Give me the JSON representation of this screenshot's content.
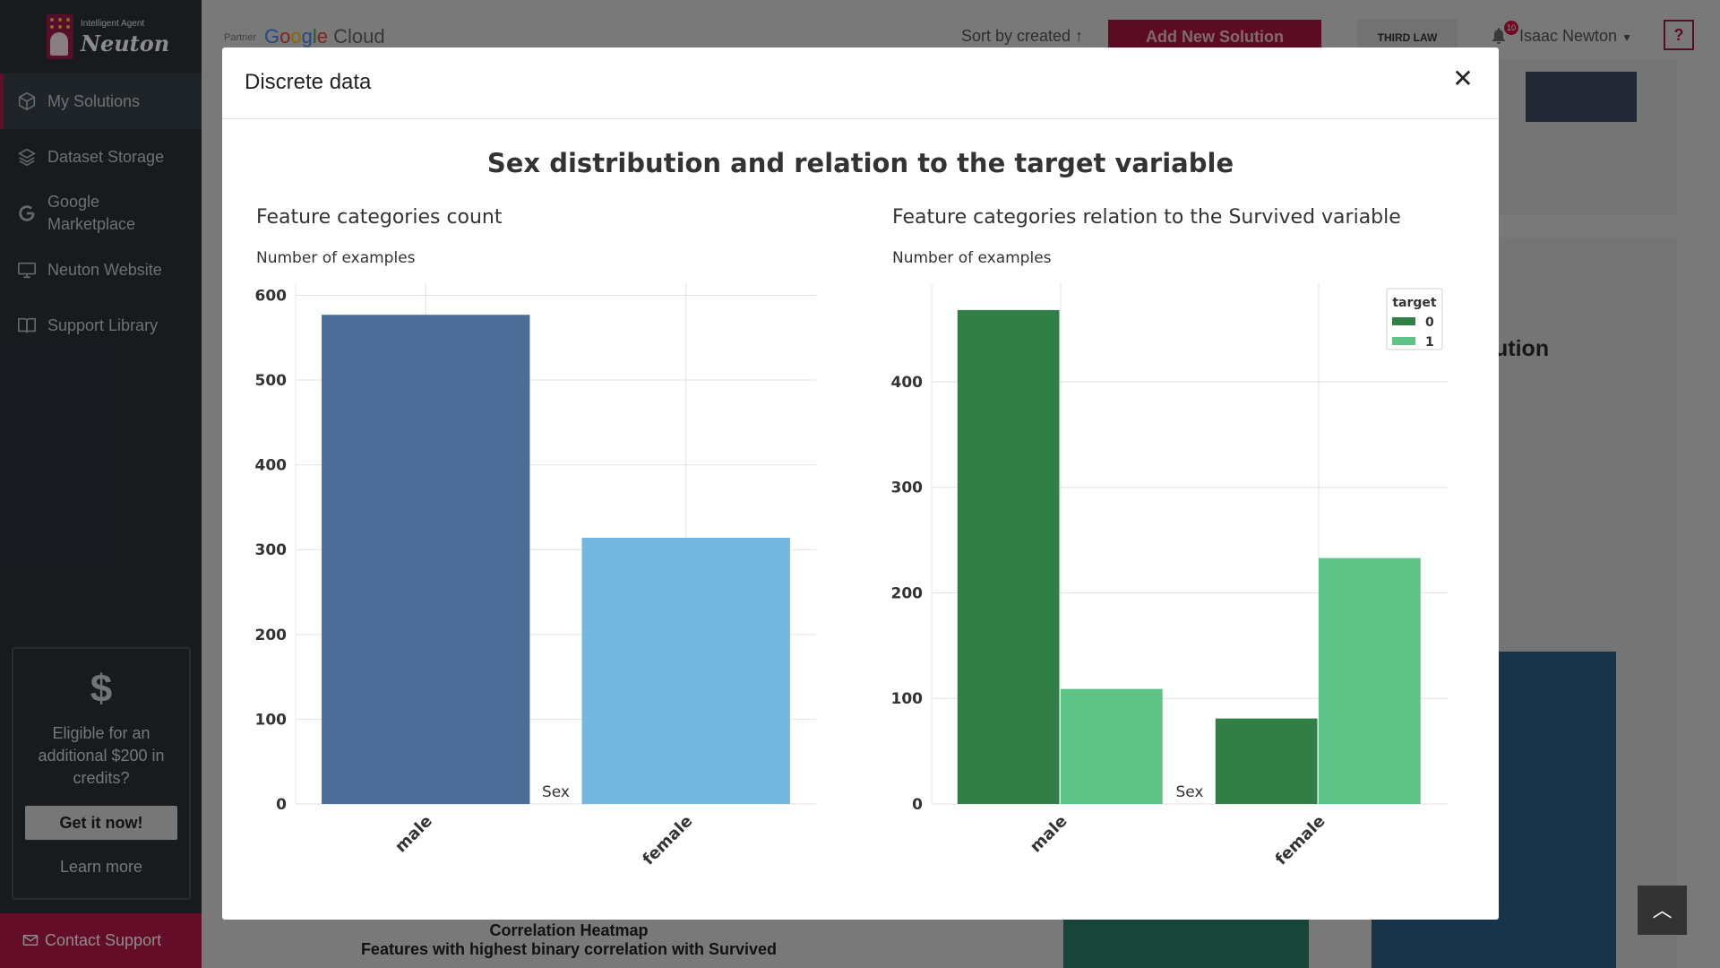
{
  "sidebar": {
    "logo": {
      "subtitle": "Intelligent Agent",
      "name": "Neuton"
    },
    "items": [
      {
        "label": "My Solutions",
        "icon": "cube-icon",
        "active": true
      },
      {
        "label": "Dataset Storage",
        "icon": "layers-icon"
      },
      {
        "label": "Google Marketplace",
        "icon": "google-g-icon"
      },
      {
        "label": "Neuton Website",
        "icon": "monitor-icon"
      },
      {
        "label": "Support Library",
        "icon": "book-icon"
      }
    ],
    "credits": {
      "symbol": "$",
      "text": "Eligible for an additional $200 in credits?",
      "button": "Get it now!",
      "link": "Learn more"
    },
    "contact": "Contact Support"
  },
  "topbar": {
    "partner": "Partner",
    "cloud": {
      "g1": "G",
      "g2": "o",
      "g3": "o",
      "g4": "g",
      "g5": "l",
      "g6": "e",
      "rest": " Cloud"
    },
    "sort": "Sort by created",
    "add_button": "Add New Solution",
    "third_law": "THIRD LAW",
    "notifications": "10",
    "user": "Isaac Newton",
    "help": "?"
  },
  "background": {
    "heading_fragment": "ution",
    "heatmap_title": "Correlation Heatmap",
    "heatmap_subtitle": "Features with highest binary correlation with Survived"
  },
  "modal": {
    "title": "Discrete data",
    "close": "✕",
    "suptitle": "Sex distribution and relation to the target variable"
  },
  "chart_data": [
    {
      "type": "bar",
      "title": "Feature categories count",
      "ylabel": "Number of examples",
      "xlabel": "Sex",
      "categories": [
        "male",
        "female"
      ],
      "values": [
        577,
        314
      ],
      "colors": [
        "#4c6d97",
        "#73b8de"
      ],
      "ylim": [
        0,
        610
      ],
      "yticks": [
        0,
        100,
        200,
        300,
        400,
        500,
        600
      ],
      "grid": true
    },
    {
      "type": "bar",
      "title": "Feature categories relation to the Survived variable",
      "ylabel": "Number of examples",
      "xlabel": "Sex",
      "categories": [
        "male",
        "female"
      ],
      "series": [
        {
          "name": "0",
          "values": [
            468,
            81
          ],
          "color": "#317e47"
        },
        {
          "name": "1",
          "values": [
            109,
            233
          ],
          "color": "#5ec386"
        }
      ],
      "legend_title": "target",
      "legend_position": "top-right",
      "ylim": [
        0,
        490
      ],
      "yticks": [
        0,
        100,
        200,
        300,
        400
      ],
      "grid": true
    }
  ]
}
